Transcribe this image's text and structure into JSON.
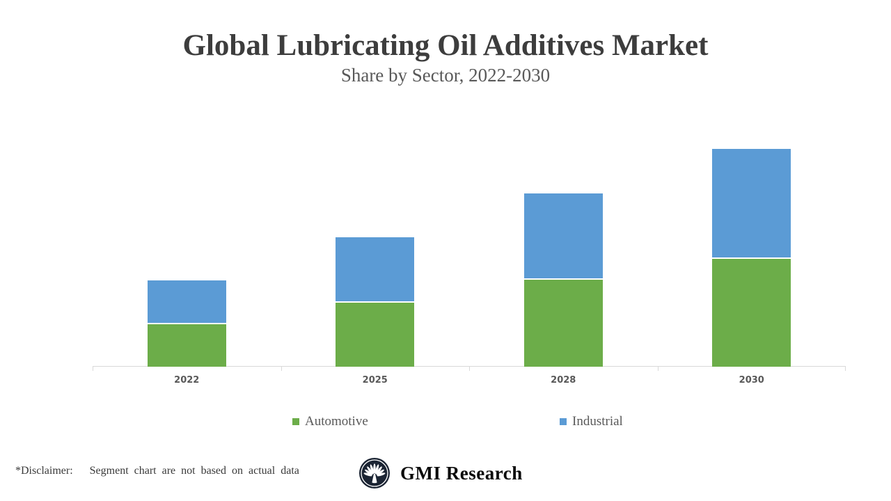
{
  "header": {
    "title": "Global Lubricating Oil Additives Market",
    "subtitle": "Share by Sector, 2022-2030"
  },
  "chart_data": {
    "type": "bar",
    "stacked": true,
    "title": "Global Lubricating Oil Additives Market — Share by Sector, 2022-2030",
    "categories": [
      "2022",
      "2025",
      "2028",
      "2030"
    ],
    "series": [
      {
        "name": "Automotive",
        "color": "#6CAD49",
        "values": [
          61,
          92,
          125,
          155
        ]
      },
      {
        "name": "Industrial",
        "color": "#5B9BD5",
        "values": [
          61,
          92,
          122,
          156
        ]
      }
    ],
    "xlabel": "",
    "ylabel": "",
    "ylim": [
      0,
      350
    ],
    "value_axis_shown": false,
    "grid": false,
    "legend_position": "bottom"
  },
  "legend": {
    "items": [
      {
        "label": "Automotive",
        "color": "#6CAD49"
      },
      {
        "label": "Industrial",
        "color": "#5B9BD5"
      }
    ]
  },
  "footer": {
    "disclaimer": "*Disclaimer:   Segment chart are not based on actual data",
    "brand": "GMI Research"
  },
  "colors": {
    "automotive": "#6CAD49",
    "industrial": "#5B9BD5",
    "axis": "#D9D9D9",
    "title_text": "#3D3D3D",
    "muted_text": "#595959",
    "logo_navy": "#1B2433"
  }
}
